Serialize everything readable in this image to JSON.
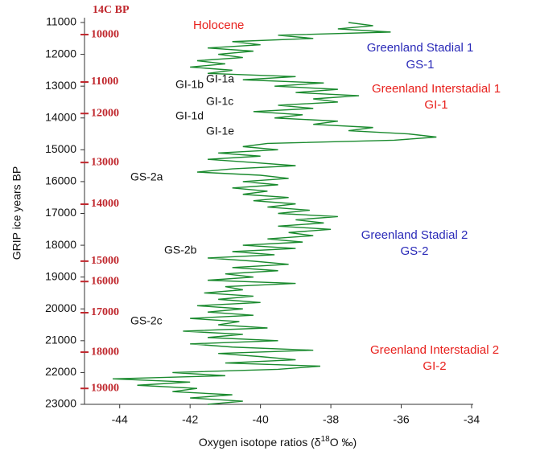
{
  "chart_data": {
    "type": "line",
    "x_label_parts": [
      "Oxygen isotope ratios (δ",
      "18",
      "O ‰)"
    ],
    "y_label": "GRIP ice years BP",
    "y_reversed": true,
    "xlim": [
      -45,
      -34
    ],
    "xticks": [
      -44,
      -42,
      -40,
      -38,
      -36,
      -34
    ],
    "ylim": [
      11000,
      23000
    ],
    "yticks": [
      11000,
      12000,
      13000,
      14000,
      15000,
      16000,
      17000,
      18000,
      19000,
      20000,
      21000,
      22000,
      23000
    ],
    "c14_scale": {
      "title": "14C BP",
      "color": "#c0272d",
      "ticks": [
        10000,
        11000,
        12000,
        13000,
        14000,
        15000,
        16000,
        17000,
        18000,
        19000
      ],
      "positions": [
        11380,
        12870,
        13860,
        15400,
        16710,
        18500,
        19140,
        20120,
        21360,
        22500
      ]
    },
    "annotations": [
      {
        "text": "Holocene",
        "color": "#e8211d"
      },
      {
        "text": "Greenland Stadial 1",
        "color": "#2a2ab8"
      },
      {
        "text": "GS-1",
        "color": "#2a2ab8"
      },
      {
        "text": "Greenland Interstadial 1",
        "color": "#e8211d"
      },
      {
        "text": "GI-1",
        "color": "#e8211d"
      },
      {
        "text": "GI-1a",
        "color": "#111111"
      },
      {
        "text": "GI-1b",
        "color": "#111111"
      },
      {
        "text": "GI-1c",
        "color": "#111111"
      },
      {
        "text": "GI-1d",
        "color": "#111111"
      },
      {
        "text": "GI-1e",
        "color": "#111111"
      },
      {
        "text": "GS-2a",
        "color": "#111111"
      },
      {
        "text": "Greenland Stadial 2",
        "color": "#2a2ab8"
      },
      {
        "text": "GS-2",
        "color": "#2a2ab8"
      },
      {
        "text": "GS-2b",
        "color": "#111111"
      },
      {
        "text": "GS-2c",
        "color": "#111111"
      },
      {
        "text": "Greenland Interstadial 2",
        "color": "#e8211d"
      },
      {
        "text": "GI-2",
        "color": "#e8211d"
      }
    ],
    "series": [
      {
        "color": "#1a8a2e",
        "x": [
          11000,
          11100,
          11200,
          11300,
          11400,
          11500,
          11600,
          11700,
          11800,
          11900,
          12000,
          12100,
          12200,
          12300,
          12400,
          12500,
          12600,
          12700,
          12800,
          12900,
          13000,
          13100,
          13200,
          13300,
          13400,
          13500,
          13600,
          13700,
          13800,
          13900,
          14000,
          14100,
          14200,
          14300,
          14400,
          14500,
          14600,
          14700,
          14800,
          14900,
          15000,
          15100,
          15200,
          15300,
          15400,
          15500,
          15600,
          15700,
          15800,
          15900,
          16000,
          16100,
          16200,
          16300,
          16400,
          16500,
          16600,
          16700,
          16800,
          16900,
          17000,
          17100,
          17200,
          17300,
          17400,
          17500,
          17600,
          17700,
          17800,
          17900,
          18000,
          18100,
          18200,
          18300,
          18400,
          18500,
          18600,
          18700,
          18800,
          18900,
          19000,
          19100,
          19200,
          19300,
          19400,
          19500,
          19600,
          19700,
          19800,
          19900,
          20000,
          20100,
          20200,
          20300,
          20400,
          20500,
          20600,
          20700,
          20800,
          20900,
          21000,
          21100,
          21200,
          21300,
          21400,
          21500,
          21600,
          21700,
          21800,
          21900,
          22000,
          22100,
          22200,
          22300,
          22400,
          22500,
          22600,
          22700,
          22800,
          22900,
          23000
        ],
        "values": [
          -37.5,
          -36.8,
          -37.8,
          -36.3,
          -39.5,
          -38.5,
          -40.8,
          -40.0,
          -41.5,
          -40.2,
          -41.2,
          -40.5,
          -41.8,
          -41.0,
          -42.0,
          -40.8,
          -41.5,
          -39.0,
          -40.5,
          -38.2,
          -39.6,
          -37.8,
          -39.0,
          -37.2,
          -38.5,
          -37.8,
          -39.5,
          -38.5,
          -40.2,
          -38.8,
          -39.6,
          -37.8,
          -38.5,
          -36.8,
          -37.5,
          -35.8,
          -35.0,
          -36.2,
          -39.8,
          -40.5,
          -39.5,
          -41.2,
          -40.0,
          -41.5,
          -40.2,
          -39.0,
          -40.8,
          -41.8,
          -40.0,
          -39.2,
          -40.5,
          -39.5,
          -40.8,
          -39.8,
          -40.5,
          -39.2,
          -40.2,
          -39.0,
          -39.8,
          -38.6,
          -39.5,
          -37.8,
          -39.0,
          -38.2,
          -39.5,
          -38.0,
          -39.2,
          -38.5,
          -39.8,
          -38.8,
          -40.5,
          -39.0,
          -40.8,
          -39.6,
          -41.5,
          -40.2,
          -39.2,
          -40.8,
          -39.5,
          -41.0,
          -40.2,
          -41.5,
          -39.0,
          -41.0,
          -40.5,
          -41.6,
          -40.2,
          -41.2,
          -40.0,
          -41.8,
          -40.5,
          -41.5,
          -40.2,
          -42.0,
          -40.6,
          -41.2,
          -39.8,
          -42.2,
          -40.5,
          -41.5,
          -39.5,
          -42.0,
          -40.8,
          -38.5,
          -41.2,
          -40.0,
          -39.0,
          -41.0,
          -38.3,
          -39.5,
          -42.5,
          -41.0,
          -44.2,
          -42.0,
          -43.5,
          -41.8,
          -42.5,
          -40.8,
          -42.0,
          -40.5,
          -41.5
        ]
      }
    ]
  }
}
